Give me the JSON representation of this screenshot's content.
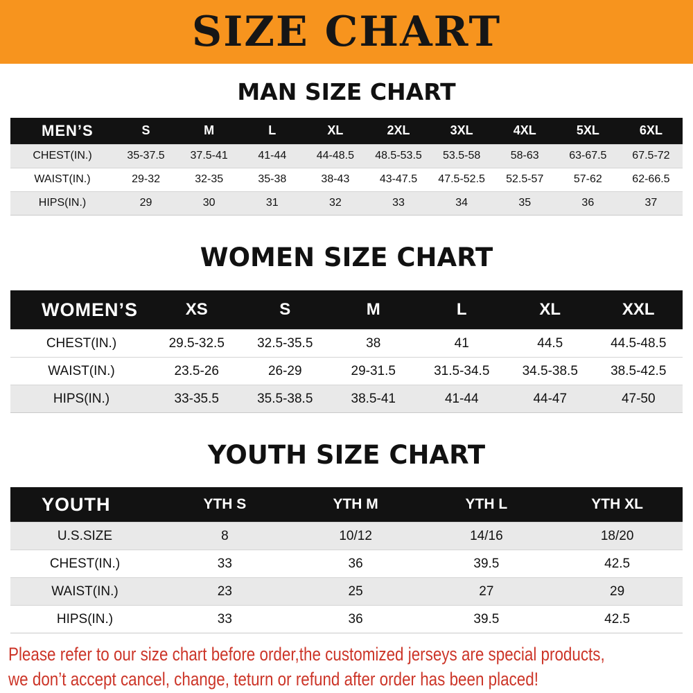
{
  "banner": {
    "title": "SIZE CHART"
  },
  "sections": [
    {
      "heading": "MAN SIZE CHART",
      "table": {
        "header_label": "MEN’S",
        "columns": [
          "S",
          "M",
          "L",
          "XL",
          "2XL",
          "3XL",
          "4XL",
          "5XL",
          "6XL"
        ],
        "rows": [
          {
            "label": "CHEST(IN.)",
            "values": [
              "35-37.5",
              "37.5-41",
              "41-44",
              "44-48.5",
              "48.5-53.5",
              "53.5-58",
              "58-63",
              "63-67.5",
              "67.5-72"
            ]
          },
          {
            "label": "WAIST(IN.)",
            "values": [
              "29-32",
              "32-35",
              "35-38",
              "38-43",
              "43-47.5",
              "47.5-52.5",
              "52.5-57",
              "57-62",
              "62-66.5"
            ]
          },
          {
            "label": "HIPS(IN.)",
            "values": [
              "29",
              "30",
              "31",
              "32",
              "33",
              "34",
              "35",
              "36",
              "37"
            ]
          }
        ]
      }
    },
    {
      "heading": "WOMEN SIZE CHART",
      "table": {
        "header_label": "WOMEN’S",
        "columns": [
          "XS",
          "S",
          "M",
          "L",
          "XL",
          "XXL"
        ],
        "rows": [
          {
            "label": "CHEST(IN.)",
            "values": [
              "29.5-32.5",
              "32.5-35.5",
              "38",
              "41",
              "44.5",
              "44.5-48.5"
            ]
          },
          {
            "label": "WAIST(IN.)",
            "values": [
              "23.5-26",
              "26-29",
              "29-31.5",
              "31.5-34.5",
              "34.5-38.5",
              "38.5-42.5"
            ]
          },
          {
            "label": "HIPS(IN.)",
            "values": [
              "33-35.5",
              "35.5-38.5",
              "38.5-41",
              "41-44",
              "44-47",
              "47-50"
            ]
          }
        ]
      }
    },
    {
      "heading": "YOUTH SIZE CHART",
      "table": {
        "header_label": "YOUTH",
        "columns": [
          "YTH S",
          "YTH M",
          "YTH L",
          "YTH XL"
        ],
        "rows": [
          {
            "label": "U.S.SIZE",
            "values": [
              "8",
              "10/12",
              "14/16",
              "18/20"
            ]
          },
          {
            "label": "CHEST(IN.)",
            "values": [
              "33",
              "36",
              "39.5",
              "42.5"
            ]
          },
          {
            "label": "WAIST(IN.)",
            "values": [
              "23",
              "25",
              "27",
              "29"
            ]
          },
          {
            "label": "HIPS(IN.)",
            "values": [
              "33",
              "36",
              "39.5",
              "42.5"
            ]
          }
        ]
      }
    }
  ],
  "footer": {
    "line1": "Please refer to our size chart before order,the customized jerseys are special products,",
    "line2": "we don’t accept cancel, change, teturn or refund after order has been placed!"
  },
  "colors": {
    "banner_bg": "#F7941E",
    "header_bg": "#121212",
    "stripe": "#E9E9E9",
    "footer_text": "#CC3528",
    "heading_text": "#111111"
  }
}
